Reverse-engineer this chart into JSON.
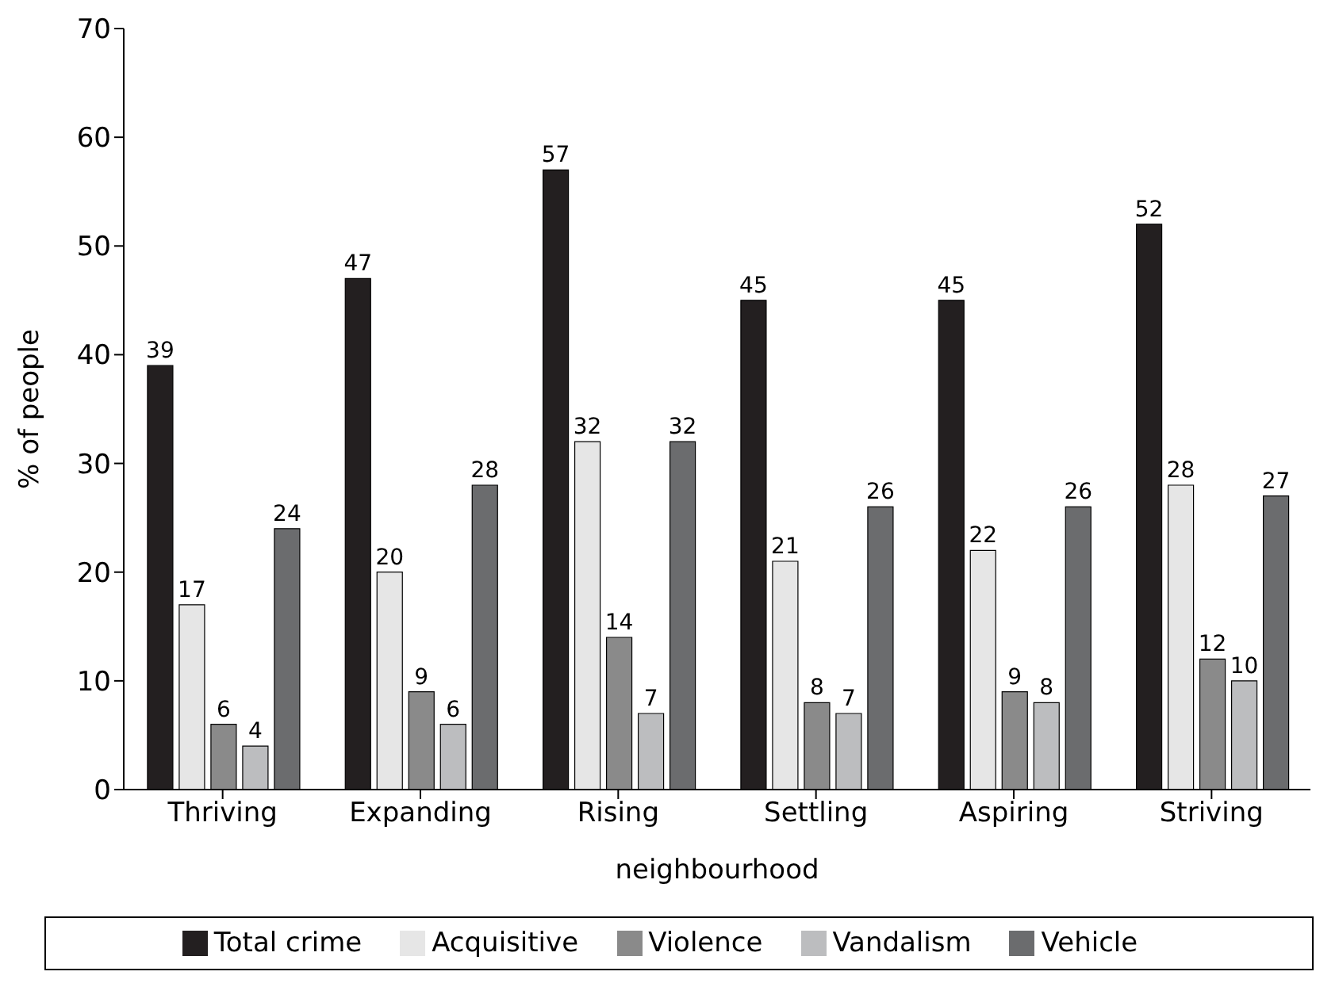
{
  "chart_data": {
    "type": "bar",
    "xlabel": "neighbourhood",
    "ylabel": "% of people",
    "categories": [
      "Thriving",
      "Expanding",
      "Rising",
      "Settling",
      "Aspiring",
      "Striving"
    ],
    "series": [
      {
        "name": "Total crime",
        "color": "#231f20",
        "values": [
          39,
          47,
          57,
          45,
          45,
          52
        ]
      },
      {
        "name": "Acquisitive",
        "color": "#e6e6e6",
        "values": [
          17,
          20,
          32,
          21,
          22,
          28
        ]
      },
      {
        "name": "Violence",
        "color": "#8a8a8a",
        "values": [
          6,
          9,
          14,
          8,
          9,
          12
        ]
      },
      {
        "name": "Vandalism",
        "color": "#bcbdbf",
        "values": [
          4,
          6,
          7,
          7,
          8,
          10
        ]
      },
      {
        "name": "Vehicle",
        "color": "#6b6c6e",
        "values": [
          24,
          28,
          32,
          26,
          26,
          27
        ]
      }
    ],
    "ylim": [
      0,
      70
    ],
    "yticks": [
      0,
      10,
      20,
      30,
      40,
      50,
      60,
      70
    ],
    "grid": false,
    "legend": "bottom",
    "data_labels": true
  }
}
